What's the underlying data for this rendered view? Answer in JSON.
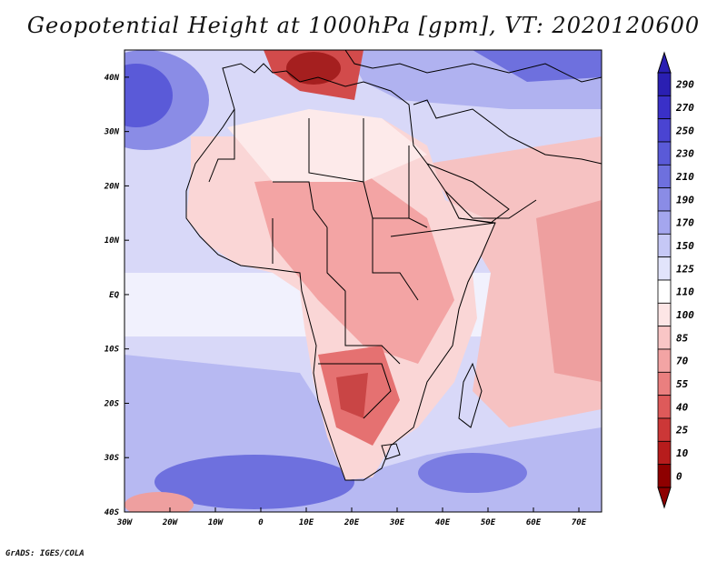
{
  "title": "Geopotential Height at 1000hPa [gpm], VT: 2020120600",
  "credit": "GrADS: IGES/COLA",
  "lat_labels": [
    "40N",
    "30N",
    "20N",
    "10N",
    "EQ",
    "10S",
    "20S",
    "30S",
    "40S"
  ],
  "lon_labels": [
    "30W",
    "20W",
    "10W",
    "0",
    "10E",
    "20E",
    "30E",
    "40E",
    "50E",
    "60E",
    "70E"
  ],
  "colorbar": {
    "labels": [
      "290",
      "270",
      "250",
      "230",
      "210",
      "190",
      "170",
      "150",
      "125",
      "110",
      "100",
      "85",
      "70",
      "55",
      "40",
      "25",
      "10",
      "0"
    ],
    "colors": [
      "#2a1fb2",
      "#3a30c8",
      "#4a44d2",
      "#5a5ad8",
      "#6e70de",
      "#8a8ce6",
      "#a4a6ee",
      "#c6c8f6",
      "#e2e4fb",
      "#ffffff",
      "#fde6e6",
      "#f9c6c6",
      "#f3a4a4",
      "#ea7f7f",
      "#de5a5a",
      "#cc3737",
      "#b71c1c",
      "#8e0000"
    ]
  },
  "map": {
    "lat_range": [
      -40,
      45
    ],
    "lon_range": [
      -30,
      75
    ],
    "land_color": "#fbdede",
    "ocean_color": "#dcdcfa"
  }
}
